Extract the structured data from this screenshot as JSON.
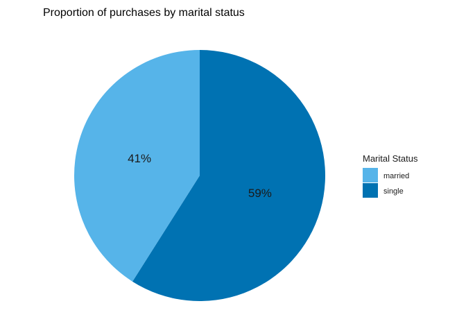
{
  "chart_data": {
    "type": "pie",
    "title": "Proportion of purchases by marital status",
    "slices": [
      {
        "label": "married",
        "value": 41,
        "display": "41%",
        "color": "#56b4e9"
      },
      {
        "label": "single",
        "value": 59,
        "display": "59%",
        "color": "#0072b2"
      }
    ],
    "legend": {
      "title": "Marital Status",
      "position": "right",
      "items": [
        "married",
        "single"
      ]
    }
  }
}
